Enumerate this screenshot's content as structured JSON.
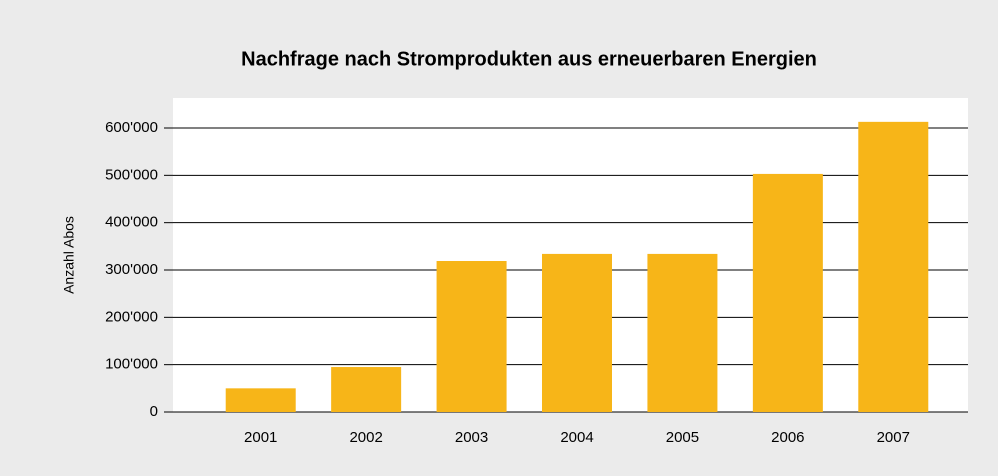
{
  "chart_data": {
    "type": "bar",
    "title": "Nachfrage nach Stromprodukten aus erneuerbaren Energien",
    "y_label": "Anzahl Abos",
    "categories": [
      "2001",
      "2002",
      "2003",
      "2004",
      "2005",
      "2006",
      "2007"
    ],
    "values": [
      50000,
      95000,
      319000,
      334000,
      334000,
      503000,
      613000
    ],
    "color": "#f7b518",
    "ylim": [
      0,
      660000
    ],
    "yticks": [
      0,
      {
        "value": 100000,
        "label": "100'000"
      },
      {
        "value": 200000,
        "label": "200'000"
      },
      {
        "value": 300000,
        "label": "300'000"
      },
      {
        "value": 400000,
        "label": "400'000"
      },
      {
        "value": 500000,
        "label": "500'000"
      },
      {
        "value": 600000,
        "label": "600'000"
      }
    ],
    "grid": true
  }
}
